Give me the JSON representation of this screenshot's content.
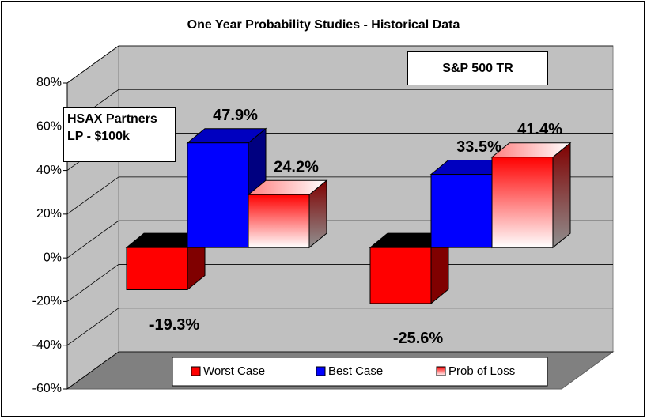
{
  "chart_data": {
    "type": "bar3d",
    "title": "One Year Probability Studies - Historical Data",
    "categories": [
      "HSAX Partners LP - $100k",
      "S&P 500 TR"
    ],
    "series": [
      {
        "name": "Worst Case",
        "color": "#ff0000",
        "values": [
          -19.3,
          -25.6
        ],
        "value_labels": [
          "-19.3%",
          "-25.6%"
        ]
      },
      {
        "name": "Best Case",
        "color": "#0000ff",
        "values": [
          47.9,
          33.5
        ],
        "value_labels": [
          "47.9%",
          "33.5%"
        ]
      },
      {
        "name": "Prob of Loss",
        "color": "#ff0000",
        "values": [
          24.2,
          41.4
        ],
        "value_labels": [
          "24.2%",
          "41.4%"
        ]
      }
    ],
    "ylim": [
      -60,
      80
    ],
    "yticks": [
      {
        "value": -60,
        "label": "-60%"
      },
      {
        "value": -40,
        "label": "-40%"
      },
      {
        "value": -20,
        "label": "-20%"
      },
      {
        "value": 0,
        "label": "0%"
      },
      {
        "value": 20,
        "label": "20%"
      },
      {
        "value": 40,
        "label": "40%"
      },
      {
        "value": 60,
        "label": "60%"
      },
      {
        "value": 80,
        "label": "80%"
      }
    ],
    "grid": true
  }
}
